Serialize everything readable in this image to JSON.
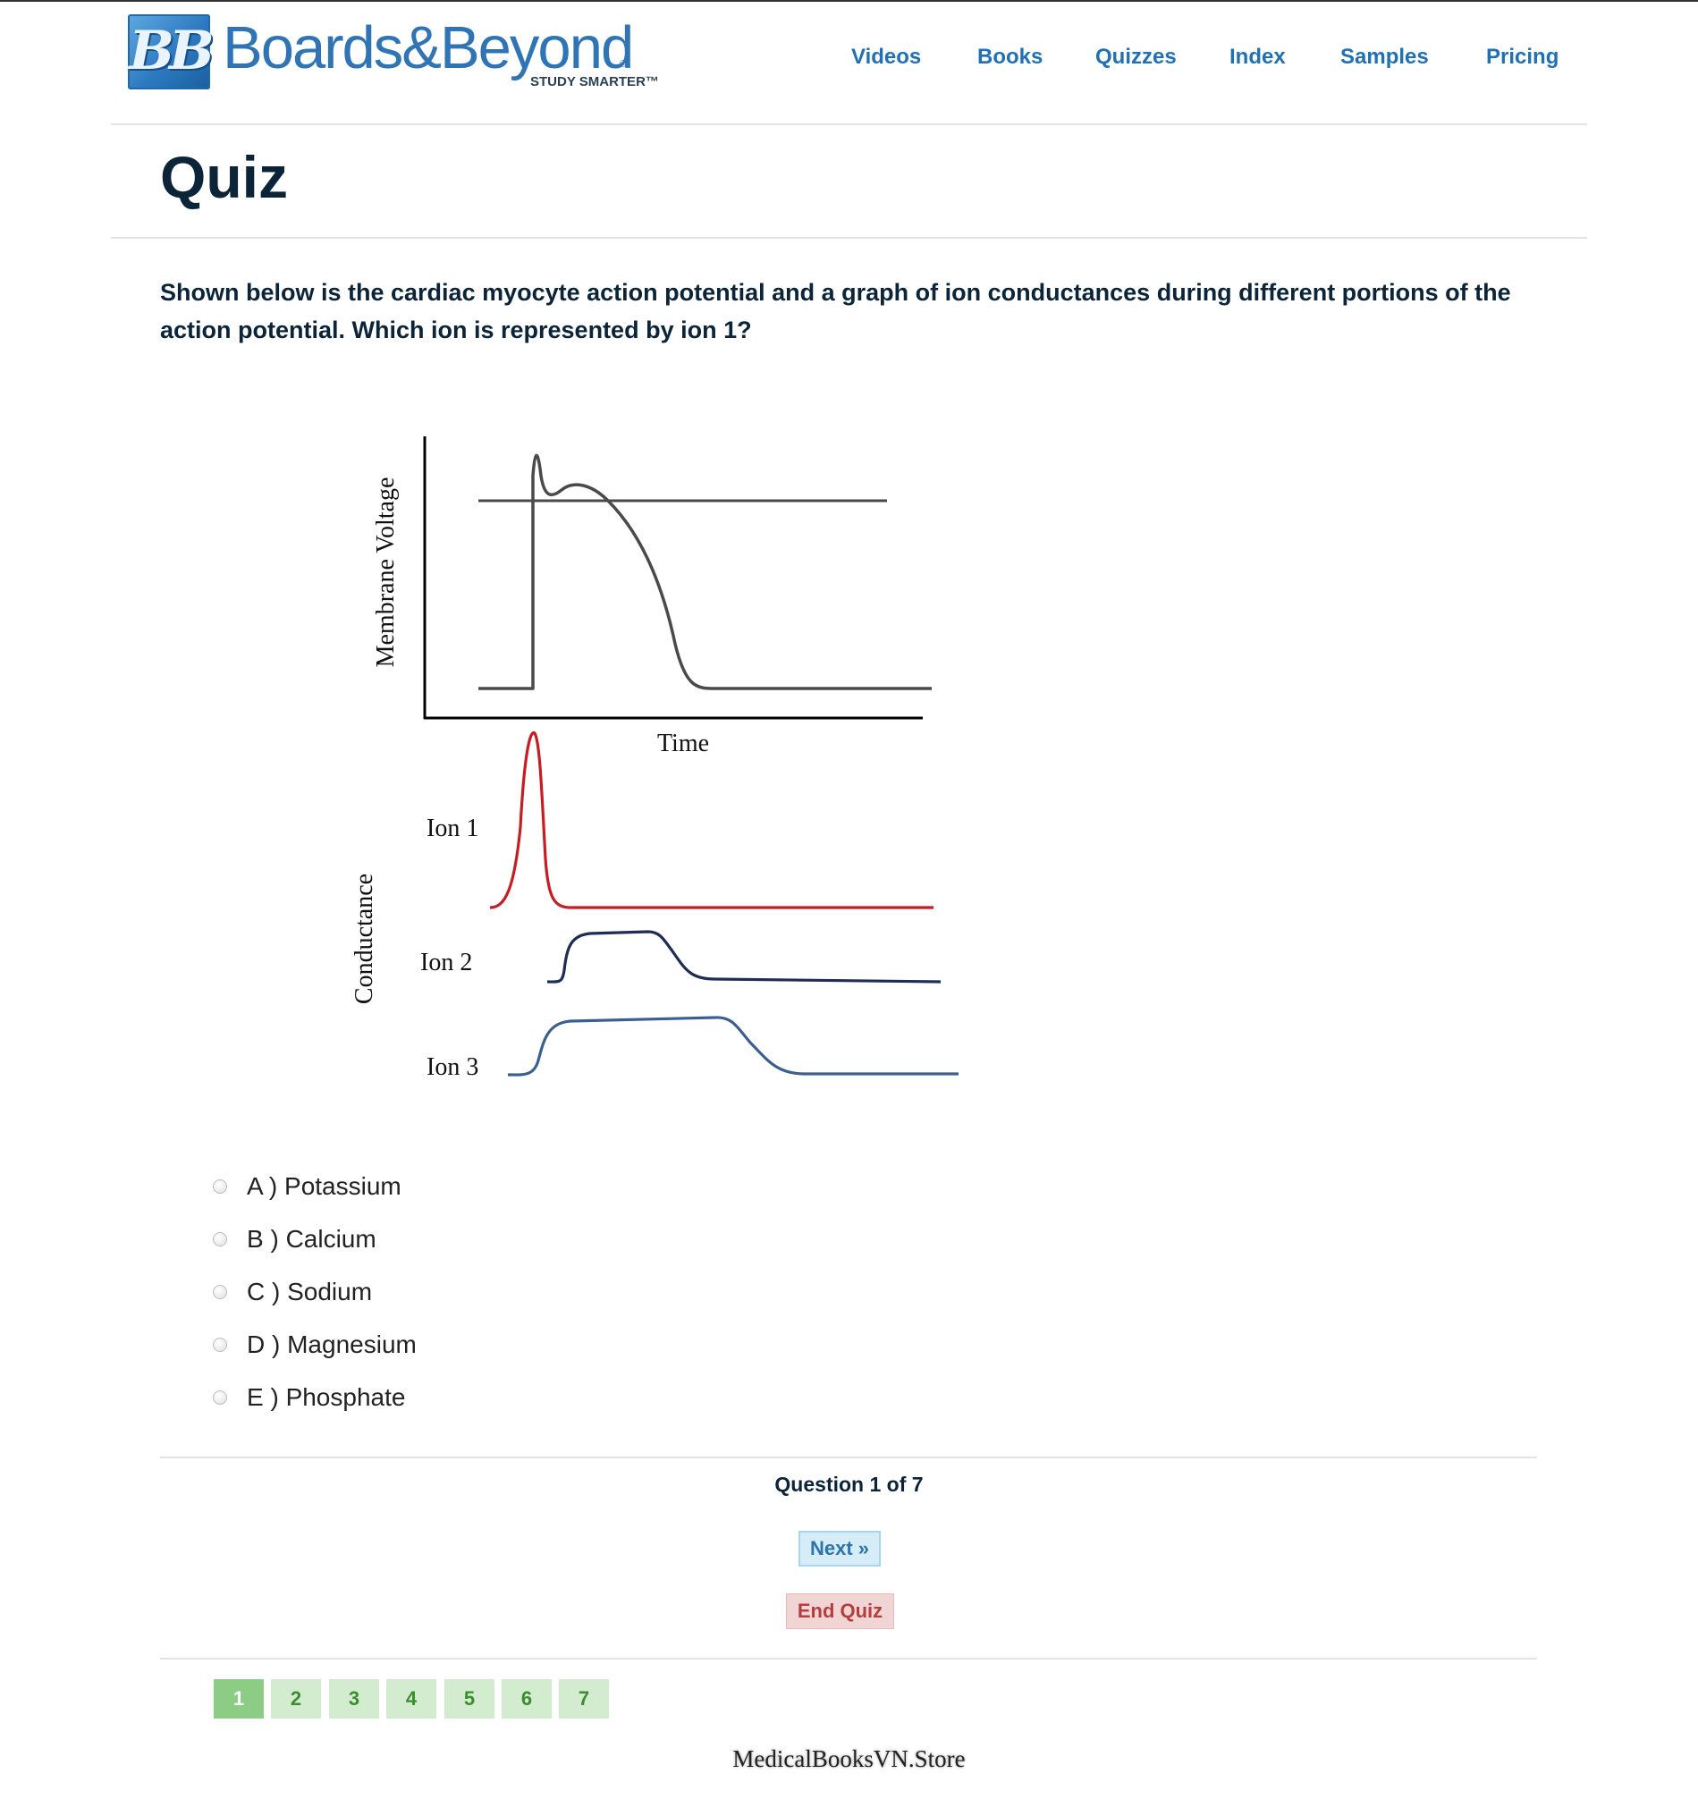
{
  "header": {
    "logo": {
      "monogram": "BB",
      "wordmark": "Boards&Beyond",
      "registered": "®",
      "tagline": "STUDY SMARTER™"
    },
    "nav": [
      "Videos",
      "Books",
      "Quizzes",
      "Index",
      "Samples",
      "Pricing"
    ]
  },
  "page_title": "Quiz",
  "question": "Shown below is the cardiac myocyte action potential and a graph of ion conductances during different portions of the action potential. Which ion is represented by ion 1?",
  "figure": {
    "top_ylabel": "Membrane Voltage",
    "top_xlabel": "Time",
    "bottom_ylabel": "Conductance",
    "traces": [
      {
        "label": "Ion 1",
        "color": "#c41e24"
      },
      {
        "label": "Ion 2",
        "color": "#1f2d55"
      },
      {
        "label": "Ion 3",
        "color": "#3b5f8e"
      }
    ],
    "voltage_color": "#4a4a4a"
  },
  "options": [
    {
      "letter": "A )",
      "text": "Potassium"
    },
    {
      "letter": "B )",
      "text": "Calcium"
    },
    {
      "letter": "C )",
      "text": "Sodium"
    },
    {
      "letter": "D )",
      "text": "Magnesium"
    },
    {
      "letter": "E )",
      "text": "Phosphate"
    }
  ],
  "progress": {
    "prefix": "Question",
    "current": "1",
    "of_word": "of",
    "total": "7"
  },
  "buttons": {
    "next": "Next »",
    "end": "End Quiz"
  },
  "pages": [
    "1",
    "2",
    "3",
    "4",
    "5",
    "6",
    "7"
  ],
  "active_page": "1",
  "watermark": "MedicalBooksVN.Store"
}
